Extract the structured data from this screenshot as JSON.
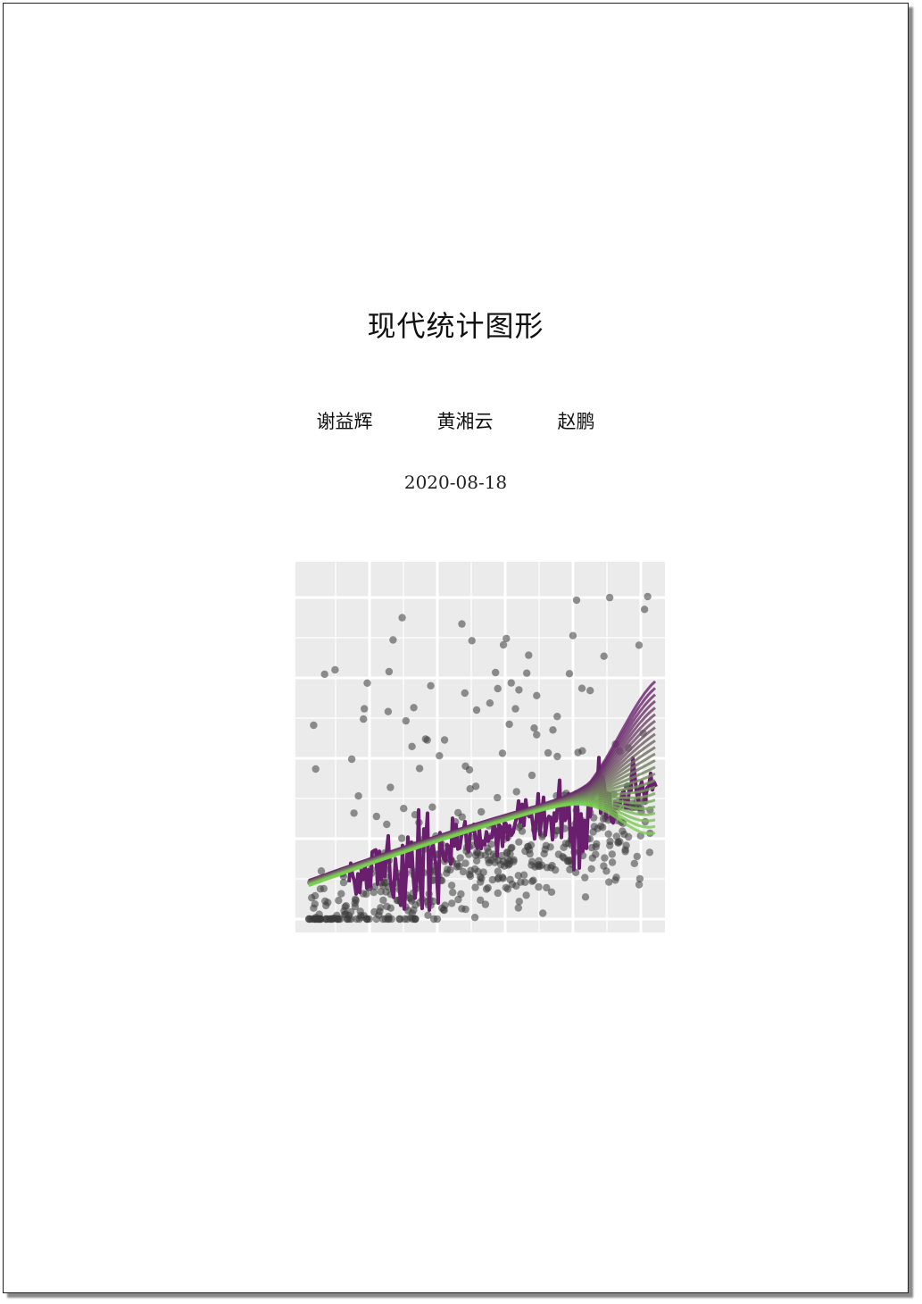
{
  "document": {
    "title": "现代统计图形",
    "authors": [
      "谢益辉",
      "黄湘云",
      "赵鹏"
    ],
    "date": "2020-08-18"
  },
  "cover_image": {
    "description_kind": "decorative cover plot",
    "panel_background": "#ebebeb",
    "grid_color": "#ffffff",
    "point_color": "#3a3a3a",
    "noisy_line_color": "#6a1e6e",
    "smooth_band_colors": [
      "#6a1e6e",
      "#7ad151"
    ]
  }
}
